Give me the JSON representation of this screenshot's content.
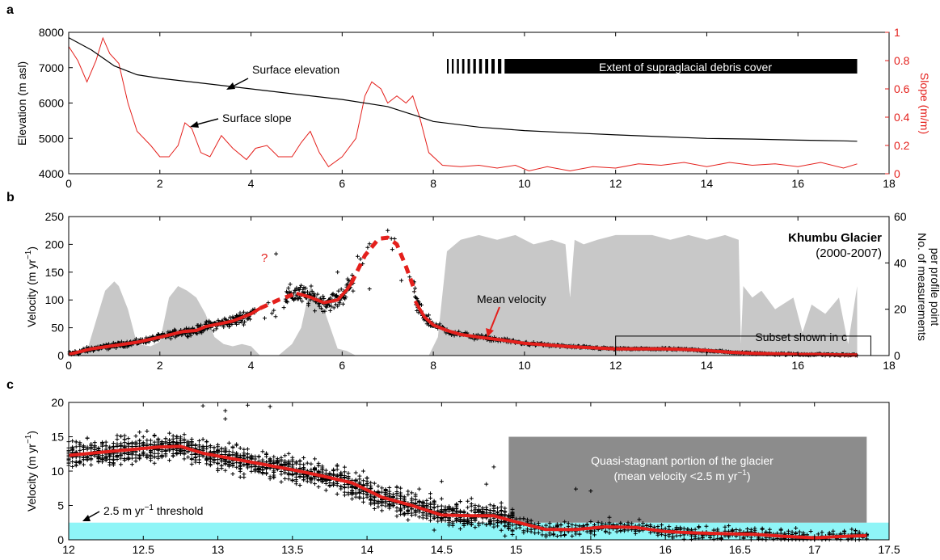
{
  "colors": {
    "elevation": "#000000",
    "slope": "#e4201c",
    "mean_velocity": "#e4201c",
    "points": "#000000",
    "measurement_count": "#c8c8c8",
    "stagnant_zone": "#8c8c8c",
    "threshold_band": "#8ff5f7",
    "debris_bar": "#000000"
  },
  "chart_data": [
    {
      "panel": "a",
      "type": "line",
      "xlim": [
        0,
        18
      ],
      "x_ticks": [
        0,
        2,
        4,
        6,
        8,
        10,
        12,
        14,
        16,
        18
      ],
      "ylabel": "Elevation (m asl)",
      "ylim": [
        4000,
        8000
      ],
      "y_ticks": [
        4000,
        5000,
        6000,
        7000,
        8000
      ],
      "y2label": "Slope (m/m)",
      "y2lim": [
        0,
        1
      ],
      "y2_ticks": [
        0,
        0.2,
        0.4,
        0.6,
        0.8,
        1
      ],
      "series": [
        {
          "name": "Surface elevation",
          "axis": "left",
          "x": [
            0,
            0.5,
            1,
            1.5,
            2,
            3,
            4,
            5,
            6,
            7,
            7.6,
            8,
            9,
            10,
            11,
            12,
            13,
            14,
            15,
            16,
            17,
            17.3
          ],
          "y": [
            7850,
            7500,
            7050,
            6800,
            6700,
            6550,
            6400,
            6250,
            6100,
            5900,
            5650,
            5480,
            5320,
            5220,
            5160,
            5100,
            5050,
            5000,
            4980,
            4950,
            4930,
            4920
          ]
        },
        {
          "name": "Surface slope",
          "axis": "right",
          "x": [
            0,
            0.2,
            0.4,
            0.6,
            0.75,
            0.9,
            1.1,
            1.3,
            1.5,
            1.8,
            2,
            2.2,
            2.4,
            2.55,
            2.7,
            2.9,
            3.1,
            3.35,
            3.6,
            3.9,
            4.1,
            4.35,
            4.6,
            4.9,
            5.1,
            5.3,
            5.5,
            5.7,
            6,
            6.3,
            6.5,
            6.65,
            6.85,
            7,
            7.2,
            7.4,
            7.55,
            7.7,
            7.9,
            8.2,
            8.6,
            9,
            9.4,
            9.8,
            10.1,
            10.5,
            11,
            11.5,
            12,
            12.5,
            13,
            13.5,
            14,
            14.5,
            15,
            15.5,
            16,
            16.5,
            17,
            17.3
          ],
          "y": [
            0.9,
            0.8,
            0.65,
            0.8,
            0.96,
            0.85,
            0.78,
            0.5,
            0.3,
            0.2,
            0.12,
            0.12,
            0.2,
            0.36,
            0.32,
            0.15,
            0.12,
            0.27,
            0.18,
            0.1,
            0.18,
            0.2,
            0.12,
            0.12,
            0.22,
            0.3,
            0.15,
            0.05,
            0.12,
            0.25,
            0.55,
            0.65,
            0.6,
            0.5,
            0.55,
            0.5,
            0.55,
            0.4,
            0.15,
            0.06,
            0.05,
            0.06,
            0.04,
            0.06,
            0.02,
            0.05,
            0.02,
            0.05,
            0.04,
            0.07,
            0.06,
            0.08,
            0.05,
            0.08,
            0.06,
            0.07,
            0.05,
            0.08,
            0.04,
            0.07
          ]
        }
      ],
      "annotations": {
        "elevation_label": "Surface elevation",
        "slope_label": "Surface slope",
        "debris_label": "Extent of supraglacial debris cover",
        "debris_dashed_start": 8.3,
        "debris_solid_start": 9.6,
        "debris_end": 17.3
      }
    },
    {
      "panel": "b",
      "type": "scatter",
      "xlim": [
        0,
        18
      ],
      "x_ticks": [
        0,
        2,
        4,
        6,
        8,
        10,
        12,
        14,
        16,
        18
      ],
      "ylabel_main": "Velocity (m yr",
      "ylabel_sup": "−1",
      "ylabel_close": ")",
      "ylim": [
        0,
        250
      ],
      "y_ticks": [
        0,
        50,
        100,
        150,
        200,
        250
      ],
      "y2label_1": "No. of measurements",
      "y2label_2": "per profile point",
      "y2lim": [
        0,
        60
      ],
      "y2_ticks": [
        0,
        20,
        40,
        60
      ],
      "title": "Khumbu Glacier",
      "subtitle": "(2000-2007)",
      "mean_label": "Mean velocity",
      "question_mark": "?",
      "subset_label": "Subset shown in c",
      "subset_box": [
        12,
        17.6,
        0,
        35
      ],
      "measurement_count": {
        "x": [
          0,
          0.4,
          0.6,
          0.8,
          1.0,
          1.1,
          1.3,
          1.5,
          1.8,
          2.0,
          2.2,
          2.4,
          2.6,
          2.8,
          3.0,
          3.2,
          3.4,
          3.6,
          3.8,
          4.0,
          4.2,
          4.6,
          4.9,
          5.1,
          5.3,
          5.6,
          5.9,
          6.1,
          6.3,
          6.6,
          7.2,
          7.6,
          7.9,
          8.1,
          8.3,
          8.6,
          9.0,
          9.4,
          9.8,
          10.2,
          10.6,
          10.9,
          11.0,
          11.1,
          11.3,
          11.6,
          12.0,
          12.4,
          12.8,
          13.2,
          13.6,
          14.0,
          14.4,
          14.7,
          14.75,
          14.8,
          15.0,
          15.2,
          15.5,
          15.9,
          16.1,
          16.3,
          16.6,
          16.9,
          17.1,
          17.3
        ],
        "y": [
          0,
          2,
          15,
          28,
          32,
          30,
          20,
          5,
          4,
          6,
          25,
          30,
          28,
          25,
          18,
          8,
          5,
          4,
          5,
          4,
          0,
          0,
          5,
          12,
          30,
          20,
          3,
          2,
          0,
          0,
          0,
          0,
          0,
          8,
          45,
          50,
          52,
          50,
          52,
          48,
          50,
          48,
          25,
          50,
          48,
          50,
          52,
          52,
          52,
          50,
          52,
          50,
          52,
          50,
          5,
          30,
          25,
          28,
          20,
          25,
          10,
          22,
          18,
          25,
          5,
          30
        ]
      },
      "mean_velocity_solid_1": {
        "x": [
          0,
          0.5,
          1,
          1.5,
          2,
          2.5,
          2.8,
          3,
          3.3,
          3.6,
          4,
          4.2
        ],
        "y": [
          2,
          12,
          18,
          24,
          33,
          43,
          45,
          52,
          57,
          62,
          75,
          85
        ]
      },
      "mean_velocity_dash_1": {
        "x": [
          4.2,
          4.6,
          5.0
        ],
        "y": [
          85,
          100,
          112
        ]
      },
      "mean_velocity_solid_2": {
        "x": [
          5.0,
          5.3,
          5.6,
          5.9,
          6.1,
          6.2
        ],
        "y": [
          112,
          105,
          95,
          100,
          118,
          130
        ]
      },
      "mean_velocity_dash_2": {
        "x": [
          6.2,
          6.5,
          6.8,
          7.0,
          7.2,
          7.4,
          7.6
        ],
        "y": [
          130,
          180,
          210,
          212,
          200,
          160,
          115
        ]
      },
      "mean_velocity_solid_3": {
        "x": [
          7.6,
          7.8,
          8.0,
          8.3,
          8.6,
          9,
          9.5,
          10,
          10.5,
          11,
          11.5,
          12,
          12.5,
          13,
          13.5,
          14,
          14.5,
          15,
          15.5,
          16,
          16.5,
          17,
          17.3
        ],
        "y": [
          98,
          70,
          55,
          45,
          38,
          33,
          28,
          22,
          19,
          16,
          14,
          12,
          12,
          12,
          11,
          9,
          6,
          4,
          3,
          2,
          2,
          1,
          1
        ]
      }
    },
    {
      "panel": "c",
      "type": "scatter",
      "xlim": [
        12,
        17.5
      ],
      "x_ticks": [
        12,
        12.5,
        13,
        13.5,
        14,
        14.5,
        15,
        15.5,
        16,
        16.5,
        17,
        17.5
      ],
      "ylabel_main": "Velocity (m yr",
      "ylabel_sup": "−1",
      "ylabel_close": ")",
      "ylim": [
        0,
        20
      ],
      "y_ticks": [
        0,
        5,
        10,
        15,
        20
      ],
      "threshold": 2.5,
      "threshold_label_main": "2.5 m yr",
      "threshold_label_sup": "−1",
      "threshold_label_tail": " threshold",
      "stagnant_box": [
        14.95,
        17.35,
        2.5,
        15
      ],
      "stagnant_label_1": "Quasi-stagnant portion of the glacier",
      "stagnant_label_2_main": "(mean velocity <2.5 m yr",
      "stagnant_label_2_sup": "−1",
      "stagnant_label_2_close": ")",
      "mean_velocity": {
        "x": [
          12,
          12.2,
          12.4,
          12.6,
          12.75,
          12.9,
          13.1,
          13.3,
          13.5,
          13.7,
          13.9,
          14.1,
          14.3,
          14.5,
          14.7,
          14.85,
          15,
          15.2,
          15.4,
          15.6,
          15.8,
          16,
          16.2,
          16.4,
          16.6,
          16.8,
          17,
          17.2,
          17.35
        ],
        "y": [
          12.3,
          12.7,
          13.1,
          13.5,
          13.6,
          12.6,
          11.8,
          11.0,
          10.2,
          9.3,
          8.3,
          6.2,
          5.0,
          3.6,
          3.5,
          3.5,
          2.6,
          1.5,
          1.5,
          1.9,
          1.8,
          1.2,
          1.0,
          0.9,
          0.8,
          0.5,
          0.3,
          0.5,
          0.6
        ]
      }
    }
  ]
}
